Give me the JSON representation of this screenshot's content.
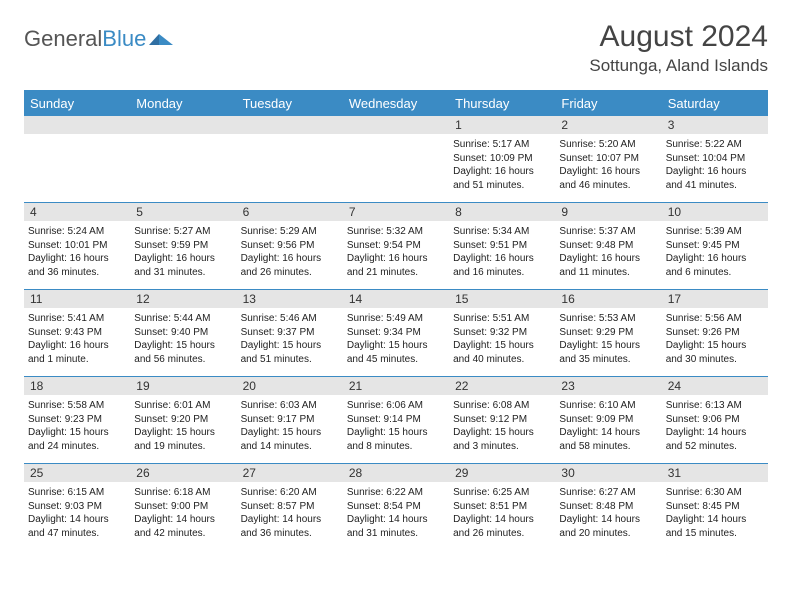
{
  "brand": {
    "part1": "General",
    "part2": "Blue"
  },
  "title": "August 2024",
  "location": "Sottunga, Aland Islands",
  "styling": {
    "type": "calendar",
    "accent_color": "#3b8bc4",
    "header_bg": "#3b8bc4",
    "header_text_color": "#ffffff",
    "daynum_bg": "#e5e5e5",
    "body_text_color": "#222222",
    "border_color": "#3b8bc4",
    "background_color": "#ffffff",
    "columns": 7,
    "rows": 5,
    "title_fontsize": 30,
    "location_fontsize": 17,
    "header_fontsize": 13,
    "daynum_fontsize": 12,
    "content_fontsize": 10
  },
  "day_labels": [
    "Sunday",
    "Monday",
    "Tuesday",
    "Wednesday",
    "Thursday",
    "Friday",
    "Saturday"
  ],
  "weeks": [
    [
      {
        "num": "",
        "lines": [
          "",
          "",
          "",
          ""
        ]
      },
      {
        "num": "",
        "lines": [
          "",
          "",
          "",
          ""
        ]
      },
      {
        "num": "",
        "lines": [
          "",
          "",
          "",
          ""
        ]
      },
      {
        "num": "",
        "lines": [
          "",
          "",
          "",
          ""
        ]
      },
      {
        "num": "1",
        "lines": [
          "Sunrise: 5:17 AM",
          "Sunset: 10:09 PM",
          "Daylight: 16 hours",
          "and 51 minutes."
        ]
      },
      {
        "num": "2",
        "lines": [
          "Sunrise: 5:20 AM",
          "Sunset: 10:07 PM",
          "Daylight: 16 hours",
          "and 46 minutes."
        ]
      },
      {
        "num": "3",
        "lines": [
          "Sunrise: 5:22 AM",
          "Sunset: 10:04 PM",
          "Daylight: 16 hours",
          "and 41 minutes."
        ]
      }
    ],
    [
      {
        "num": "4",
        "lines": [
          "Sunrise: 5:24 AM",
          "Sunset: 10:01 PM",
          "Daylight: 16 hours",
          "and 36 minutes."
        ]
      },
      {
        "num": "5",
        "lines": [
          "Sunrise: 5:27 AM",
          "Sunset: 9:59 PM",
          "Daylight: 16 hours",
          "and 31 minutes."
        ]
      },
      {
        "num": "6",
        "lines": [
          "Sunrise: 5:29 AM",
          "Sunset: 9:56 PM",
          "Daylight: 16 hours",
          "and 26 minutes."
        ]
      },
      {
        "num": "7",
        "lines": [
          "Sunrise: 5:32 AM",
          "Sunset: 9:54 PM",
          "Daylight: 16 hours",
          "and 21 minutes."
        ]
      },
      {
        "num": "8",
        "lines": [
          "Sunrise: 5:34 AM",
          "Sunset: 9:51 PM",
          "Daylight: 16 hours",
          "and 16 minutes."
        ]
      },
      {
        "num": "9",
        "lines": [
          "Sunrise: 5:37 AM",
          "Sunset: 9:48 PM",
          "Daylight: 16 hours",
          "and 11 minutes."
        ]
      },
      {
        "num": "10",
        "lines": [
          "Sunrise: 5:39 AM",
          "Sunset: 9:45 PM",
          "Daylight: 16 hours",
          "and 6 minutes."
        ]
      }
    ],
    [
      {
        "num": "11",
        "lines": [
          "Sunrise: 5:41 AM",
          "Sunset: 9:43 PM",
          "Daylight: 16 hours",
          "and 1 minute."
        ]
      },
      {
        "num": "12",
        "lines": [
          "Sunrise: 5:44 AM",
          "Sunset: 9:40 PM",
          "Daylight: 15 hours",
          "and 56 minutes."
        ]
      },
      {
        "num": "13",
        "lines": [
          "Sunrise: 5:46 AM",
          "Sunset: 9:37 PM",
          "Daylight: 15 hours",
          "and 51 minutes."
        ]
      },
      {
        "num": "14",
        "lines": [
          "Sunrise: 5:49 AM",
          "Sunset: 9:34 PM",
          "Daylight: 15 hours",
          "and 45 minutes."
        ]
      },
      {
        "num": "15",
        "lines": [
          "Sunrise: 5:51 AM",
          "Sunset: 9:32 PM",
          "Daylight: 15 hours",
          "and 40 minutes."
        ]
      },
      {
        "num": "16",
        "lines": [
          "Sunrise: 5:53 AM",
          "Sunset: 9:29 PM",
          "Daylight: 15 hours",
          "and 35 minutes."
        ]
      },
      {
        "num": "17",
        "lines": [
          "Sunrise: 5:56 AM",
          "Sunset: 9:26 PM",
          "Daylight: 15 hours",
          "and 30 minutes."
        ]
      }
    ],
    [
      {
        "num": "18",
        "lines": [
          "Sunrise: 5:58 AM",
          "Sunset: 9:23 PM",
          "Daylight: 15 hours",
          "and 24 minutes."
        ]
      },
      {
        "num": "19",
        "lines": [
          "Sunrise: 6:01 AM",
          "Sunset: 9:20 PM",
          "Daylight: 15 hours",
          "and 19 minutes."
        ]
      },
      {
        "num": "20",
        "lines": [
          "Sunrise: 6:03 AM",
          "Sunset: 9:17 PM",
          "Daylight: 15 hours",
          "and 14 minutes."
        ]
      },
      {
        "num": "21",
        "lines": [
          "Sunrise: 6:06 AM",
          "Sunset: 9:14 PM",
          "Daylight: 15 hours",
          "and 8 minutes."
        ]
      },
      {
        "num": "22",
        "lines": [
          "Sunrise: 6:08 AM",
          "Sunset: 9:12 PM",
          "Daylight: 15 hours",
          "and 3 minutes."
        ]
      },
      {
        "num": "23",
        "lines": [
          "Sunrise: 6:10 AM",
          "Sunset: 9:09 PM",
          "Daylight: 14 hours",
          "and 58 minutes."
        ]
      },
      {
        "num": "24",
        "lines": [
          "Sunrise: 6:13 AM",
          "Sunset: 9:06 PM",
          "Daylight: 14 hours",
          "and 52 minutes."
        ]
      }
    ],
    [
      {
        "num": "25",
        "lines": [
          "Sunrise: 6:15 AM",
          "Sunset: 9:03 PM",
          "Daylight: 14 hours",
          "and 47 minutes."
        ]
      },
      {
        "num": "26",
        "lines": [
          "Sunrise: 6:18 AM",
          "Sunset: 9:00 PM",
          "Daylight: 14 hours",
          "and 42 minutes."
        ]
      },
      {
        "num": "27",
        "lines": [
          "Sunrise: 6:20 AM",
          "Sunset: 8:57 PM",
          "Daylight: 14 hours",
          "and 36 minutes."
        ]
      },
      {
        "num": "28",
        "lines": [
          "Sunrise: 6:22 AM",
          "Sunset: 8:54 PM",
          "Daylight: 14 hours",
          "and 31 minutes."
        ]
      },
      {
        "num": "29",
        "lines": [
          "Sunrise: 6:25 AM",
          "Sunset: 8:51 PM",
          "Daylight: 14 hours",
          "and 26 minutes."
        ]
      },
      {
        "num": "30",
        "lines": [
          "Sunrise: 6:27 AM",
          "Sunset: 8:48 PM",
          "Daylight: 14 hours",
          "and 20 minutes."
        ]
      },
      {
        "num": "31",
        "lines": [
          "Sunrise: 6:30 AM",
          "Sunset: 8:45 PM",
          "Daylight: 14 hours",
          "and 15 minutes."
        ]
      }
    ]
  ]
}
